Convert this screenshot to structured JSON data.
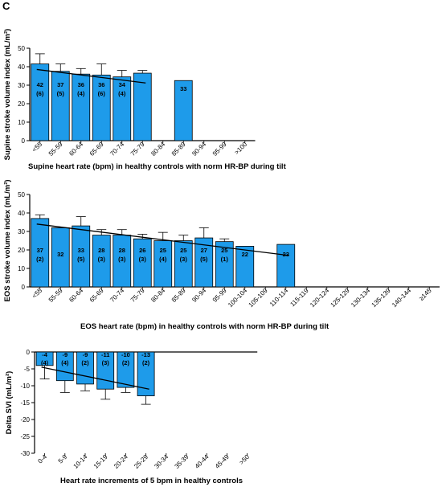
{
  "panel_letter": "C",
  "chart_data": [
    {
      "type": "bar",
      "ylabel": "Supine stroke volume index (mL/m²)",
      "xlabel": "Supine heart rate (bpm) in healthy controls with norm HR-BP during tilt",
      "ylim": [
        0,
        50
      ],
      "yticks": [
        0,
        10,
        20,
        30,
        40,
        50
      ],
      "categories": [
        "<55",
        "55-59",
        "60-64",
        "65-69",
        "70-74",
        "75-79",
        "80-84",
        "85-89",
        "90-94",
        "95-99",
        ">100"
      ],
      "values": [
        41.5,
        37.5,
        36,
        35.5,
        34.5,
        36.5,
        null,
        32.5,
        null,
        null,
        null
      ],
      "error": [
        5.5,
        4,
        3,
        6,
        3.5,
        1.5,
        null,
        null,
        null,
        null,
        null
      ],
      "bar_labels": [
        "42",
        "37",
        "36",
        "36",
        "34",
        "",
        "",
        "33",
        "",
        "",
        ""
      ],
      "bar_counts": [
        "(6)",
        "(5)",
        "(4)",
        "(6)",
        "(4)",
        "",
        "",
        "",
        "",
        "",
        ""
      ],
      "trendline": {
        "from": {
          "x": "<55",
          "y": 38.5
        },
        "to": {
          "x": "75-79",
          "y": 31.2
        }
      },
      "grid": false,
      "bar_color": "#1e9bea"
    },
    {
      "type": "bar",
      "ylabel": "EOS stroke volume index (mL/m²)",
      "xlabel": "EOS heart rate (bpm) in healthy controls with norm HR-BP during tilt",
      "ylim": [
        0,
        50
      ],
      "yticks": [
        0,
        10,
        20,
        30,
        40,
        50
      ],
      "categories": [
        "<55",
        "55-59",
        "60-64",
        "65-69",
        "70-74",
        "75-79",
        "80-84",
        "85-89",
        "90-94",
        "95-99",
        "100-104",
        "105-109",
        "110-114",
        "115-119",
        "120-124",
        "125-129",
        "130-134",
        "135-139",
        "140-144",
        "≥145"
      ],
      "values": [
        37,
        32,
        33,
        28,
        28,
        26,
        25,
        25,
        26.5,
        24.5,
        22,
        null,
        23,
        null,
        null,
        null,
        null,
        null,
        null,
        null
      ],
      "error": [
        2,
        null,
        5,
        3,
        3,
        2.5,
        4.5,
        3,
        5.5,
        1.5,
        null,
        null,
        null,
        null,
        null,
        null,
        null,
        null,
        null,
        null
      ],
      "bar_labels": [
        "37",
        "32",
        "33",
        "28",
        "28",
        "26",
        "25",
        "25",
        "27",
        "25",
        "22",
        "",
        "23",
        "",
        "",
        "",
        "",
        "",
        "",
        ""
      ],
      "bar_counts": [
        "(2)",
        "",
        "(5)",
        "(3)",
        "(3)",
        "(3)",
        "(4)",
        "(3)",
        "(5)",
        "(1)",
        "",
        "",
        "",
        "",
        "",
        "",
        "",
        "",
        "",
        ""
      ],
      "trendline": {
        "from": {
          "x": "<55",
          "y": 34
        },
        "to": {
          "x": "110-114",
          "y": 17
        }
      },
      "grid": false,
      "bar_color": "#1e9bea"
    },
    {
      "type": "bar",
      "ylabel": "Delta SVI (mL/m²)",
      "xlabel": "Heart rate increments of 5 bpm in healthy controls",
      "ylim": [
        -30,
        0
      ],
      "yticks": [
        0,
        -5,
        -10,
        -15,
        -20,
        -25,
        -30
      ],
      "categories": [
        "0-4",
        "5-9",
        "10-14",
        "15-19",
        "20-24",
        "25-29",
        "30-34",
        "35-39",
        "40-44",
        "45-49",
        ">50"
      ],
      "values": [
        -4,
        -8.5,
        -9.5,
        -11,
        -10.5,
        -13,
        null,
        null,
        null,
        null,
        null
      ],
      "error": [
        4,
        3.5,
        2,
        3,
        1.5,
        2.5,
        null,
        null,
        null,
        null,
        null
      ],
      "bar_labels": [
        "-4",
        "-9",
        "-9",
        "-11",
        "-10",
        "-13",
        "",
        "",
        "",
        "",
        ""
      ],
      "bar_counts": [
        "(4)",
        "(4)",
        "(2)",
        "(3)",
        "(2)",
        "(2)",
        "",
        "",
        "",
        "",
        ""
      ],
      "trendline": {
        "from": {
          "x": "0-4",
          "y": -4.5
        },
        "to": {
          "x": "25-29",
          "y": -11
        }
      },
      "grid": false,
      "bar_color": "#1e9bea"
    }
  ]
}
